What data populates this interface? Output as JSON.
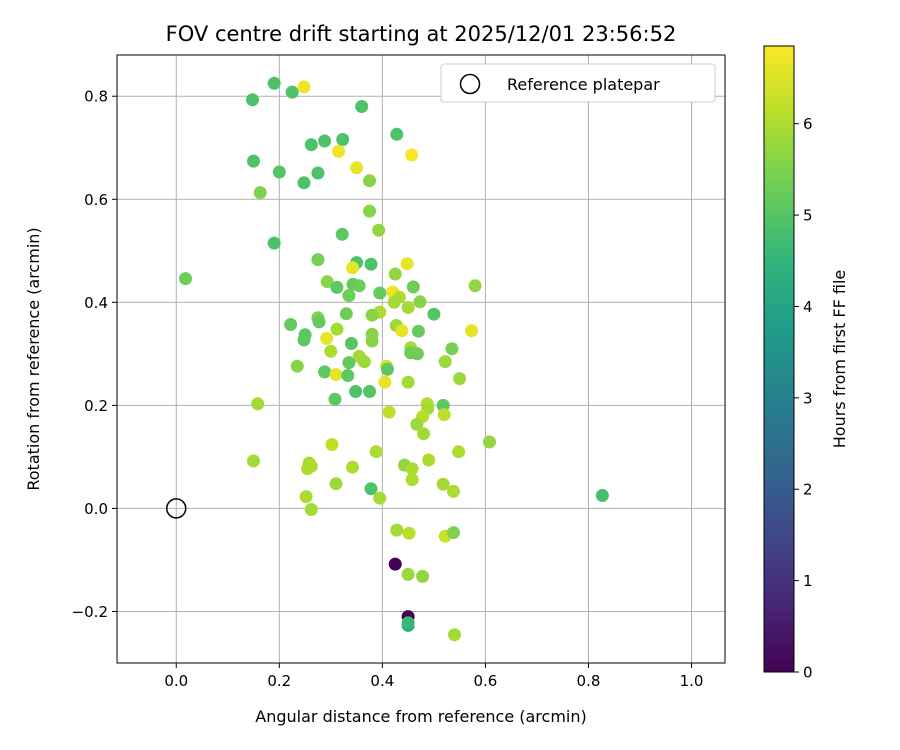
{
  "chart_data": {
    "type": "scatter",
    "title": "FOV centre drift starting at 2025/12/01 23:56:52",
    "xlabel": "Angular distance from reference (arcmin)",
    "ylabel": "Rotation from reference (arcmin)",
    "xlim": [
      -0.115,
      1.065
    ],
    "ylim": [
      -0.3,
      0.88
    ],
    "xticks": [
      0.0,
      0.2,
      0.4,
      0.6,
      0.8,
      1.0
    ],
    "xtick_labels": [
      "0.0",
      "0.2",
      "0.4",
      "0.6",
      "0.8",
      "1.0"
    ],
    "yticks": [
      -0.2,
      0.0,
      0.2,
      0.4,
      0.6,
      0.8
    ],
    "ytick_labels": [
      "−0.2",
      "0.0",
      "0.2",
      "0.4",
      "0.6",
      "0.8"
    ],
    "grid": true,
    "legend": {
      "position": "top-right",
      "entries": [
        "Reference platepar"
      ]
    },
    "reference_point": {
      "x": 0.0,
      "y": 0.0,
      "label": "Reference platepar"
    },
    "colorbar": {
      "label": "Hours from first FF file",
      "range": [
        0,
        6.85
      ],
      "ticks": [
        0,
        1,
        2,
        3,
        4,
        5,
        6
      ],
      "tick_labels": [
        "0",
        "1",
        "2",
        "3",
        "4",
        "5",
        "6"
      ],
      "colormap": [
        "#440154",
        "#482878",
        "#3e4989",
        "#31688e",
        "#26828e",
        "#1f9e89",
        "#35b779",
        "#6ece58",
        "#b5de2b",
        "#fde725"
      ]
    },
    "points_format": [
      "x",
      "y",
      "hours"
    ],
    "points": [
      [
        0.19,
        0.825,
        4.9
      ],
      [
        0.225,
        0.808,
        4.9
      ],
      [
        0.248,
        0.818,
        6.7
      ],
      [
        0.148,
        0.793,
        4.9
      ],
      [
        0.36,
        0.78,
        4.9
      ],
      [
        0.428,
        0.726,
        4.9
      ],
      [
        0.323,
        0.716,
        4.9
      ],
      [
        0.288,
        0.713,
        4.9
      ],
      [
        0.262,
        0.706,
        4.9
      ],
      [
        0.315,
        0.693,
        6.7
      ],
      [
        0.457,
        0.686,
        6.8
      ],
      [
        0.15,
        0.674,
        4.9
      ],
      [
        0.35,
        0.661,
        6.6
      ],
      [
        0.2,
        0.653,
        5.0
      ],
      [
        0.275,
        0.651,
        4.9
      ],
      [
        0.375,
        0.636,
        5.6
      ],
      [
        0.248,
        0.632,
        4.9
      ],
      [
        0.163,
        0.613,
        5.5
      ],
      [
        0.375,
        0.577,
        5.6
      ],
      [
        0.393,
        0.54,
        5.7
      ],
      [
        0.322,
        0.532,
        5.1
      ],
      [
        0.19,
        0.515,
        4.9
      ],
      [
        0.275,
        0.483,
        5.4
      ],
      [
        0.35,
        0.477,
        4.9
      ],
      [
        0.378,
        0.474,
        4.9
      ],
      [
        0.448,
        0.475,
        6.6
      ],
      [
        0.342,
        0.467,
        6.6
      ],
      [
        0.425,
        0.455,
        5.7
      ],
      [
        0.018,
        0.446,
        5.3
      ],
      [
        0.293,
        0.44,
        5.6
      ],
      [
        0.343,
        0.435,
        5.2
      ],
      [
        0.355,
        0.432,
        5.3
      ],
      [
        0.58,
        0.432,
        5.7
      ],
      [
        0.312,
        0.429,
        5.1
      ],
      [
        0.46,
        0.43,
        5.3
      ],
      [
        0.42,
        0.42,
        6.7
      ],
      [
        0.395,
        0.418,
        5.2
      ],
      [
        0.335,
        0.413,
        5.3
      ],
      [
        0.433,
        0.41,
        6.0
      ],
      [
        0.473,
        0.401,
        5.6
      ],
      [
        0.423,
        0.4,
        5.9
      ],
      [
        0.45,
        0.39,
        5.9
      ],
      [
        0.395,
        0.381,
        6.0
      ],
      [
        0.33,
        0.378,
        5.3
      ],
      [
        0.38,
        0.375,
        5.6
      ],
      [
        0.5,
        0.377,
        5.0
      ],
      [
        0.275,
        0.37,
        5.5
      ],
      [
        0.277,
        0.362,
        5.2
      ],
      [
        0.222,
        0.357,
        5.2
      ],
      [
        0.427,
        0.355,
        5.8
      ],
      [
        0.312,
        0.348,
        5.9
      ],
      [
        0.438,
        0.345,
        6.6
      ],
      [
        0.47,
        0.344,
        5.2
      ],
      [
        0.573,
        0.345,
        6.6
      ],
      [
        0.25,
        0.337,
        5.1
      ],
      [
        0.38,
        0.338,
        5.6
      ],
      [
        0.248,
        0.327,
        5.1
      ],
      [
        0.292,
        0.33,
        6.6
      ],
      [
        0.38,
        0.325,
        5.6
      ],
      [
        0.34,
        0.32,
        5.0
      ],
      [
        0.455,
        0.312,
        5.9
      ],
      [
        0.535,
        0.31,
        5.4
      ],
      [
        0.3,
        0.305,
        6.0
      ],
      [
        0.455,
        0.302,
        5.3
      ],
      [
        0.468,
        0.3,
        5.3
      ],
      [
        0.355,
        0.295,
        5.9
      ],
      [
        0.335,
        0.283,
        5.2
      ],
      [
        0.522,
        0.285,
        5.8
      ],
      [
        0.365,
        0.285,
        5.8
      ],
      [
        0.235,
        0.276,
        5.6
      ],
      [
        0.408,
        0.276,
        6.4
      ],
      [
        0.41,
        0.27,
        5.1
      ],
      [
        0.288,
        0.265,
        5.1
      ],
      [
        0.31,
        0.26,
        6.6
      ],
      [
        0.333,
        0.258,
        5.1
      ],
      [
        0.55,
        0.252,
        5.8
      ],
      [
        0.405,
        0.245,
        6.6
      ],
      [
        0.45,
        0.245,
        5.9
      ],
      [
        0.348,
        0.227,
        4.9
      ],
      [
        0.375,
        0.227,
        5.0
      ],
      [
        0.308,
        0.212,
        5.1
      ],
      [
        0.158,
        0.203,
        5.9
      ],
      [
        0.487,
        0.203,
        6.0
      ],
      [
        0.518,
        0.2,
        5.1
      ],
      [
        0.488,
        0.194,
        5.9
      ],
      [
        0.413,
        0.187,
        6.2
      ],
      [
        0.478,
        0.178,
        6.1
      ],
      [
        0.52,
        0.182,
        6.2
      ],
      [
        0.467,
        0.163,
        5.8
      ],
      [
        0.48,
        0.145,
        5.9
      ],
      [
        0.608,
        0.129,
        5.7
      ],
      [
        0.302,
        0.124,
        6.2
      ],
      [
        0.388,
        0.11,
        6.0
      ],
      [
        0.548,
        0.11,
        6.0
      ],
      [
        0.15,
        0.092,
        5.9
      ],
      [
        0.49,
        0.094,
        6.0
      ],
      [
        0.258,
        0.088,
        5.9
      ],
      [
        0.255,
        0.077,
        6.0
      ],
      [
        0.262,
        0.082,
        6.0
      ],
      [
        0.342,
        0.08,
        6.0
      ],
      [
        0.443,
        0.084,
        5.7
      ],
      [
        0.458,
        0.077,
        6.0
      ],
      [
        0.458,
        0.056,
        6.0
      ],
      [
        0.31,
        0.048,
        5.8
      ],
      [
        0.518,
        0.047,
        5.9
      ],
      [
        0.378,
        0.038,
        4.9
      ],
      [
        0.538,
        0.033,
        6.0
      ],
      [
        0.827,
        0.025,
        4.8
      ],
      [
        0.252,
        0.023,
        6.0
      ],
      [
        0.395,
        0.02,
        5.9
      ],
      [
        0.262,
        -0.002,
        5.9
      ],
      [
        0.428,
        -0.042,
        5.9
      ],
      [
        0.452,
        -0.048,
        6.1
      ],
      [
        0.522,
        -0.054,
        6.3
      ],
      [
        0.538,
        -0.047,
        5.5
      ],
      [
        0.425,
        -0.108,
        0.0
      ],
      [
        0.45,
        -0.128,
        5.8
      ],
      [
        0.478,
        -0.132,
        5.7
      ],
      [
        0.45,
        -0.21,
        0.0
      ],
      [
        0.45,
        -0.227,
        4.2
      ],
      [
        0.45,
        -0.222,
        4.6
      ],
      [
        0.54,
        -0.245,
        5.9
      ]
    ]
  }
}
